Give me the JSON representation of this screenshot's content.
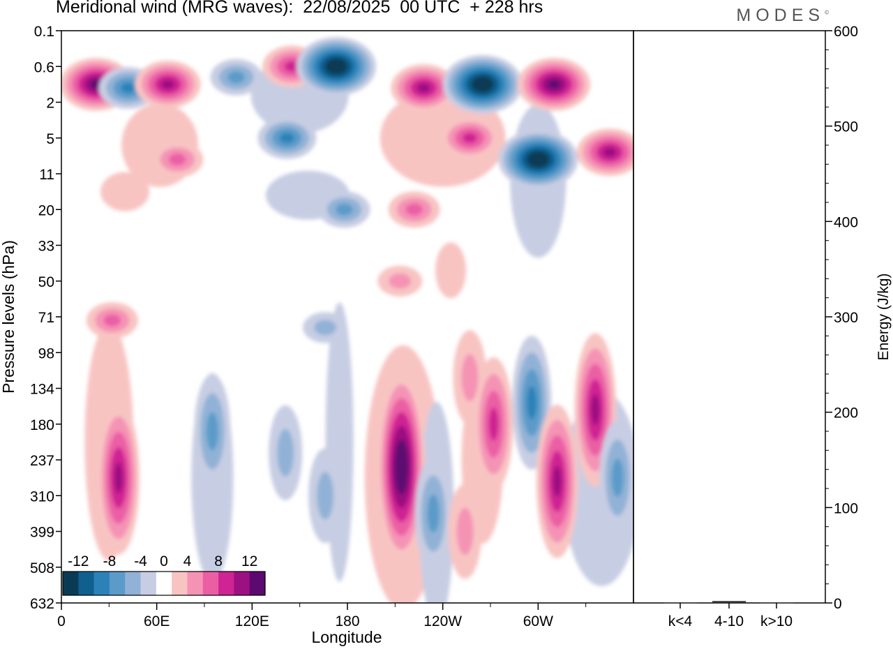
{
  "header": {
    "title": "Meridional wind (MRG waves):  22/08/2025  00 UTC  + 228 hrs",
    "brand": "MODES",
    "brand_mark": "©"
  },
  "chart_data": [
    {
      "type": "heatmap",
      "title": "Meridional wind (MRG waves)",
      "xlabel": "Longitude",
      "ylabel": "Pressure levels (hPa)",
      "x_ticks": [
        "0",
        "60E",
        "120E",
        "180",
        "120W",
        "60W"
      ],
      "y_ticks": [
        "0.1",
        "0.6",
        "2",
        "5",
        "11",
        "20",
        "33",
        "50",
        "71",
        "98",
        "134",
        "180",
        "237",
        "310",
        "399",
        "508",
        "632"
      ],
      "colorbar": {
        "labels": [
          "-12",
          "-8",
          "-4",
          "0",
          "4",
          "8",
          "12"
        ],
        "levels": [
          -14,
          -12,
          -10,
          -8,
          -6,
          -4,
          -2,
          2,
          4,
          6,
          8,
          10,
          12,
          14
        ],
        "colors": [
          "#0b3a55",
          "#0f5f8f",
          "#2b82b9",
          "#5b9bc9",
          "#91b2d6",
          "#c7cde3",
          "#ffffff",
          "#f8c4c2",
          "#f593b5",
          "#eb5ea4",
          "#cf2493",
          "#9c1182",
          "#5c0970"
        ]
      },
      "features": [
        {
          "lon": 22,
          "lev": 1.5,
          "value": 12
        },
        {
          "lon": 42,
          "lev": 1.6,
          "value": -8
        },
        {
          "lon": 67,
          "lev": 1.5,
          "value": 10
        },
        {
          "lon": 110,
          "lev": 1.3,
          "value": -6
        },
        {
          "lon": 145,
          "lev": 1.0,
          "value": 8
        },
        {
          "lon": 173,
          "lev": 1.0,
          "value": -14
        },
        {
          "lon": 228,
          "lev": 1.6,
          "value": 10
        },
        {
          "lon": 265,
          "lev": 1.5,
          "value": -14
        },
        {
          "lon": 310,
          "lev": 1.5,
          "value": 12
        },
        {
          "lon": 142,
          "lev": 3.0,
          "value": -8
        },
        {
          "lon": 257,
          "lev": 3.0,
          "value": 8
        },
        {
          "lon": 300,
          "lev": 3.6,
          "value": -14
        },
        {
          "lon": 345,
          "lev": 3.4,
          "value": 10
        },
        {
          "lon": 73,
          "lev": 3.6,
          "value": 6
        },
        {
          "lon": 178,
          "lev": 5.0,
          "value": -6
        },
        {
          "lon": 222,
          "lev": 5.0,
          "value": 6
        },
        {
          "lon": 213,
          "lev": 7.0,
          "value": 4
        },
        {
          "lon": 32,
          "lev": 8.1,
          "value": 6
        },
        {
          "lon": 257,
          "lev": 9.7,
          "value": 4
        },
        {
          "lon": 36,
          "lev": 12.5,
          "value": 10
        },
        {
          "lon": 95,
          "lev": 11.2,
          "value": -6
        },
        {
          "lon": 141,
          "lev": 11.8,
          "value": -4
        },
        {
          "lon": 166,
          "lev": 13.0,
          "value": -4
        },
        {
          "lon": 214,
          "lev": 12.2,
          "value": 14
        },
        {
          "lon": 234,
          "lev": 13.5,
          "value": -6
        },
        {
          "lon": 272,
          "lev": 11.0,
          "value": 8
        },
        {
          "lon": 296,
          "lev": 10.4,
          "value": -8
        },
        {
          "lon": 312,
          "lev": 12.6,
          "value": 10
        },
        {
          "lon": 336,
          "lev": 10.6,
          "value": 10
        },
        {
          "lon": 350,
          "lev": 12.5,
          "value": -6
        },
        {
          "lon": 166,
          "lev": 8.3,
          "value": -4
        },
        {
          "lon": 254,
          "lev": 14.0,
          "value": 4
        }
      ]
    },
    {
      "type": "bar",
      "categories": [
        "k<4",
        "4-10",
        "k>10"
      ],
      "values": [
        0.5,
        2,
        0.5
      ],
      "ylabel": "Energy (J/kg)",
      "ylim": [
        0,
        600
      ],
      "y_ticks": [
        "0",
        "100",
        "200",
        "300",
        "400",
        "500",
        "600"
      ]
    }
  ]
}
